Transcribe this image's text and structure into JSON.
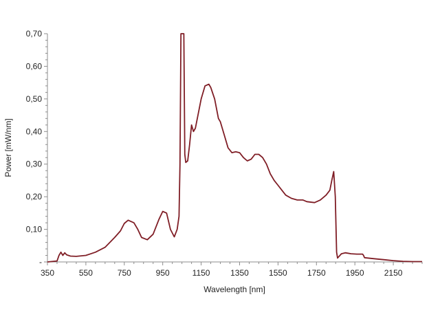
{
  "chart_data": {
    "type": "line",
    "xlabel": "Wavelength [nm]",
    "ylabel": "Power [mW/nm]",
    "xlim": [
      350,
      2300
    ],
    "ylim": [
      0,
      0.7
    ],
    "grid": false,
    "legend": "none",
    "x_tick_values": [
      350,
      550,
      750,
      950,
      1150,
      1350,
      1550,
      1750,
      1950,
      2150
    ],
    "x_tick_labels": [
      "350",
      "550",
      "750",
      "950",
      "1150",
      "1350",
      "1550",
      "1750",
      "1950",
      "2150"
    ],
    "y_tick_values": [
      0,
      0.1,
      0.2,
      0.3,
      0.4,
      0.5,
      0.6,
      0.7
    ],
    "y_tick_labels": [
      "-",
      "0,10",
      "0,20",
      "0,30",
      "0,40",
      "0,50",
      "0,60",
      "0,70"
    ],
    "series": [
      {
        "color": "#7f1d25",
        "x": [
          350,
          400,
          410,
          420,
          430,
          440,
          450,
          470,
          500,
          550,
          600,
          650,
          700,
          730,
          750,
          770,
          800,
          820,
          840,
          870,
          900,
          930,
          950,
          970,
          990,
          1010,
          1025,
          1035,
          1040,
          1045,
          1050,
          1060,
          1065,
          1070,
          1080,
          1090,
          1100,
          1110,
          1120,
          1130,
          1150,
          1170,
          1190,
          1200,
          1220,
          1240,
          1250,
          1270,
          1290,
          1310,
          1330,
          1350,
          1370,
          1390,
          1410,
          1430,
          1450,
          1470,
          1490,
          1510,
          1530,
          1550,
          1570,
          1590,
          1620,
          1650,
          1680,
          1700,
          1740,
          1770,
          1800,
          1820,
          1830,
          1840,
          1848,
          1855,
          1860,
          1880,
          1900,
          1930,
          1960,
          1990,
          1995,
          2000,
          2050,
          2100,
          2150,
          2200,
          2250,
          2300
        ],
        "y": [
          0.0,
          0.003,
          0.02,
          0.03,
          0.02,
          0.028,
          0.022,
          0.018,
          0.017,
          0.02,
          0.03,
          0.045,
          0.075,
          0.095,
          0.118,
          0.128,
          0.12,
          0.1,
          0.075,
          0.068,
          0.085,
          0.13,
          0.155,
          0.15,
          0.1,
          0.077,
          0.1,
          0.14,
          0.3,
          0.7,
          0.7,
          0.7,
          0.33,
          0.305,
          0.31,
          0.36,
          0.42,
          0.4,
          0.41,
          0.44,
          0.5,
          0.54,
          0.545,
          0.535,
          0.5,
          0.44,
          0.43,
          0.39,
          0.35,
          0.335,
          0.338,
          0.335,
          0.32,
          0.31,
          0.315,
          0.33,
          0.33,
          0.32,
          0.3,
          0.27,
          0.25,
          0.235,
          0.22,
          0.205,
          0.195,
          0.19,
          0.19,
          0.185,
          0.182,
          0.19,
          0.205,
          0.22,
          0.25,
          0.277,
          0.2,
          0.03,
          0.012,
          0.025,
          0.028,
          0.025,
          0.024,
          0.024,
          0.02,
          0.013,
          0.01,
          0.007,
          0.004,
          0.002,
          0.001,
          0.001
        ]
      }
    ]
  }
}
